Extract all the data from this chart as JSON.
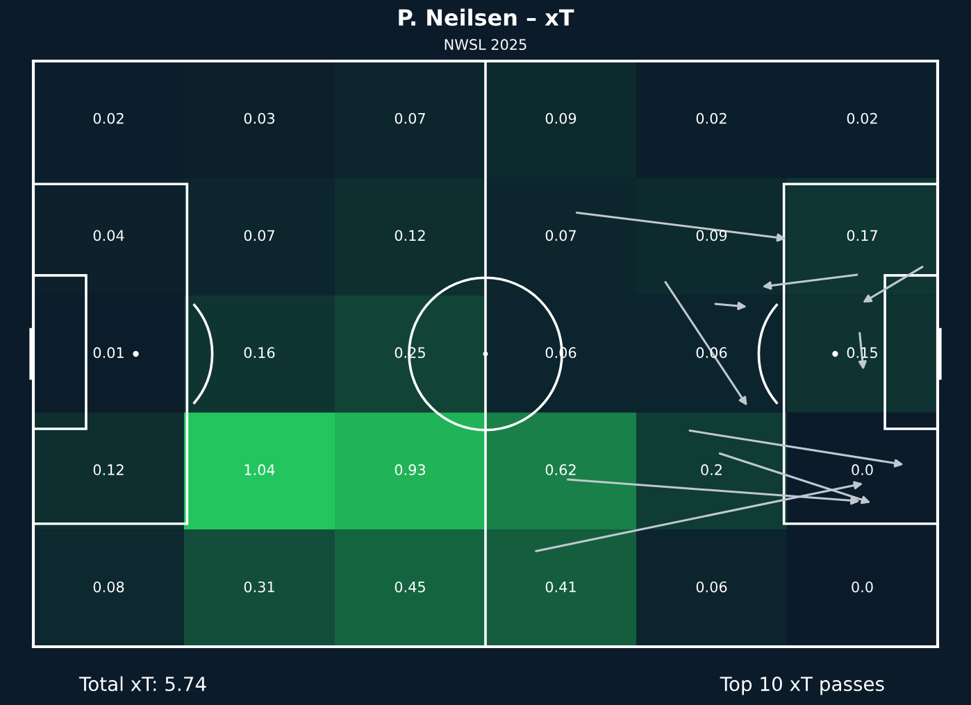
{
  "chart_data": {
    "type": "heatmap",
    "title": "P. Neilsen – xT",
    "subtitle": "NWSL 2025",
    "categories": [
      null,
      null,
      null,
      null,
      null,
      null
    ],
    "y_categories": [
      null,
      null,
      null,
      null,
      null
    ],
    "cells": [
      [
        0.02,
        0.03,
        0.07,
        0.09,
        0.02,
        0.02
      ],
      [
        0.04,
        0.07,
        0.12,
        0.07,
        0.09,
        0.17
      ],
      [
        0.01,
        0.16,
        0.25,
        0.06,
        0.06,
        0.15
      ],
      [
        0.12,
        1.04,
        0.93,
        0.62,
        0.2,
        0.0
      ],
      [
        0.08,
        0.31,
        0.45,
        0.41,
        0.06,
        0.0
      ]
    ],
    "cell_labels": [
      [
        "0.02",
        "0.03",
        "0.07",
        "0.09",
        "0.02",
        "0.02"
      ],
      [
        "0.04",
        "0.07",
        "0.12",
        "0.07",
        "0.09",
        "0.17"
      ],
      [
        "0.01",
        "0.16",
        "0.25",
        "0.06",
        "0.06",
        "0.15"
      ],
      [
        "0.12",
        "1.04",
        "0.93",
        "0.62",
        "0.2",
        "0.0"
      ],
      [
        "0.08",
        "0.31",
        "0.45",
        "0.41",
        "0.06",
        "0.0"
      ]
    ],
    "color": "#22c55e",
    "annotations": [
      "Total xT: 5.74",
      "Top 10 xT passes"
    ],
    "tick_labels": false
  }
}
